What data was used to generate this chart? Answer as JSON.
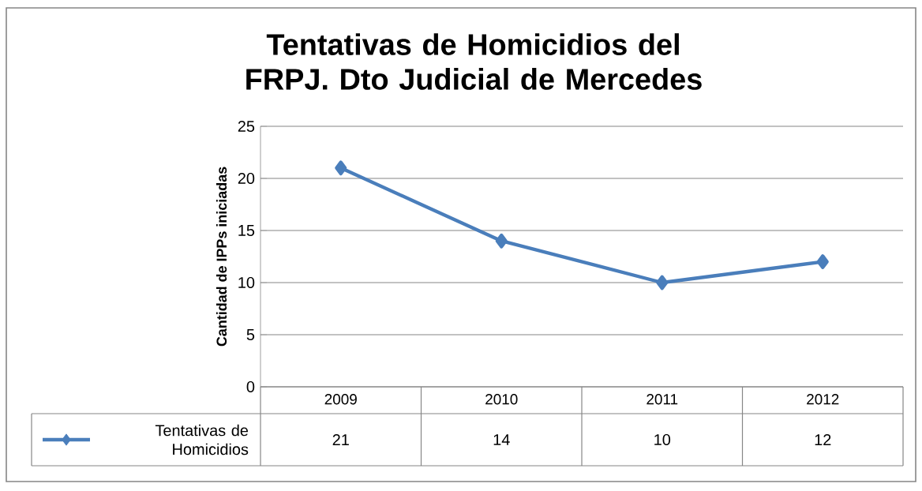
{
  "chart_data": {
    "type": "line",
    "title": "Tentativas de Homicidios del FRPJ. Dto Judicial de Mercedes",
    "ylabel": "Cantidad de IPPs iniciadas",
    "categories": [
      "2009",
      "2010",
      "2011",
      "2012"
    ],
    "series": [
      {
        "name": "Tentativas de Homicidios",
        "color": "#4a7ebb",
        "values": [
          21,
          14,
          10,
          12
        ]
      }
    ],
    "ylim": [
      0,
      25
    ],
    "yticks": [
      0,
      5,
      10,
      15,
      20,
      25
    ],
    "grid": "y",
    "legend": "bottom left",
    "marker": "diamond",
    "data_labels": true
  }
}
